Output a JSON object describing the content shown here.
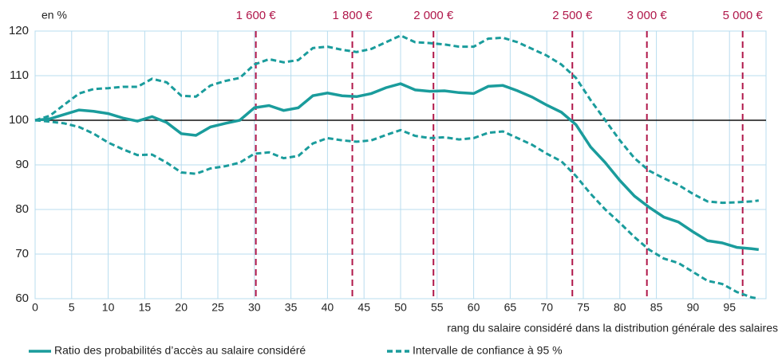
{
  "chart_data": {
    "type": "line",
    "y_unit_label": "en %",
    "xlabel": "rang du salaire considéré dans la distribution générale des salaires",
    "x": [
      0,
      2,
      4,
      6,
      8,
      10,
      12,
      14,
      16,
      18,
      20,
      22,
      24,
      26,
      28,
      30,
      32,
      34,
      36,
      38,
      40,
      42,
      44,
      46,
      48,
      50,
      52,
      54,
      56,
      58,
      60,
      62,
      64,
      66,
      68,
      70,
      72,
      74,
      76,
      78,
      80,
      82,
      84,
      86,
      88,
      90,
      92,
      94,
      96,
      98,
      99
    ],
    "series": [
      {
        "name": "Ratio des probabilités d’accès au salaire considéré",
        "color": "#1a9c9c",
        "values": [
          100,
          100.3,
          101.3,
          102.3,
          102,
          101.5,
          100.5,
          99.8,
          100.8,
          99.5,
          97,
          96.6,
          98.5,
          99.3,
          100,
          102.8,
          103.3,
          102.2,
          102.8,
          105.5,
          106.1,
          105.5,
          105.3,
          106,
          107.3,
          108.2,
          106.8,
          106.5,
          106.6,
          106.2,
          106,
          107.6,
          107.8,
          106.6,
          105.2,
          103.4,
          101.8,
          99,
          94,
          90.5,
          86.5,
          83,
          80.5,
          78.3,
          77.2,
          75,
          73,
          72.5,
          71.5,
          71.2,
          71
        ]
      },
      {
        "name": "Intervalle de confiance à 95 %",
        "color": "#1a9c9c",
        "dashed": true,
        "upper": [
          100,
          101,
          103.5,
          106,
          107,
          107.2,
          107.5,
          107.5,
          109.3,
          108.5,
          105.5,
          105.3,
          107.8,
          108.8,
          109.5,
          112.5,
          113.7,
          113,
          113.5,
          116.2,
          116.5,
          115.8,
          115.3,
          116,
          117.5,
          119,
          117.5,
          117.3,
          117,
          116.5,
          116.5,
          118.3,
          118.5,
          117.5,
          116,
          114.5,
          112.5,
          109.5,
          104.5,
          100,
          95.5,
          91.5,
          88.7,
          87,
          85.5,
          83.5,
          81.8,
          81.5,
          81.6,
          81.8,
          82
        ],
        "lower": [
          100,
          99.7,
          99.3,
          98.5,
          97,
          95,
          93.5,
          92.2,
          92.3,
          90.5,
          88.3,
          88,
          89.2,
          89.7,
          90.5,
          92.5,
          92.8,
          91.5,
          92,
          94.8,
          96,
          95.5,
          95.2,
          95.5,
          96.7,
          97.8,
          96.5,
          96,
          96.2,
          95.7,
          96,
          97.2,
          97.5,
          96,
          94.5,
          92.5,
          90.8,
          87.5,
          83.5,
          80,
          77,
          73.8,
          71,
          69,
          68,
          66,
          64,
          63.3,
          61.5,
          60.3,
          60
        ]
      }
    ],
    "reference_line": 100,
    "annotations": [
      {
        "x": 30.2,
        "label": "1 600 €"
      },
      {
        "x": 43.4,
        "label": "1 800 €"
      },
      {
        "x": 54.5,
        "label": "2 000 €"
      },
      {
        "x": 73.5,
        "label": "2 500 €"
      },
      {
        "x": 83.7,
        "label": "3 000 €"
      },
      {
        "x": 96.8,
        "label": "5 000 €"
      }
    ],
    "annotation_color": "#b0174a",
    "xlim": [
      0,
      100
    ],
    "xticks": [
      0,
      5,
      10,
      15,
      20,
      25,
      30,
      35,
      40,
      45,
      50,
      55,
      60,
      65,
      70,
      75,
      80,
      85,
      90,
      95
    ],
    "ylim": [
      60,
      120
    ],
    "yticks": [
      60,
      70,
      80,
      90,
      100,
      110,
      120
    ],
    "grid": true
  }
}
